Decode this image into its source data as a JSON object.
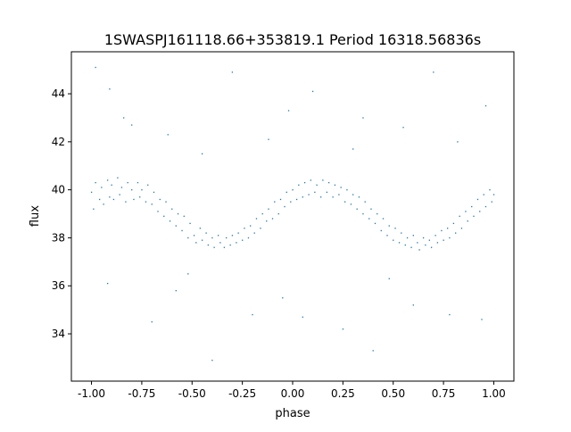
{
  "chart_data": {
    "type": "scatter",
    "title": "1SWASPJ161118.66+353819.1 Period 16318.56836s",
    "xlabel": "phase",
    "ylabel": "flux",
    "xlim": [
      -1.1,
      1.1
    ],
    "ylim": [
      32.03,
      45.75
    ],
    "xticks": [
      "-1.00",
      "-0.75",
      "-0.50",
      "-0.25",
      "0.00",
      "0.25",
      "0.50",
      "0.75",
      "1.00"
    ],
    "yticks": [
      "34",
      "36",
      "38",
      "40",
      "42",
      "44"
    ],
    "grid": false,
    "color": "#1f77b4",
    "points": [
      [
        -1.0,
        39.9
      ],
      [
        -0.99,
        39.2
      ],
      [
        -0.98,
        40.3
      ],
      [
        -0.96,
        39.6
      ],
      [
        -0.95,
        40.1
      ],
      [
        -0.94,
        39.4
      ],
      [
        -0.92,
        40.4
      ],
      [
        -0.91,
        39.7
      ],
      [
        -0.9,
        40.2
      ],
      [
        -0.89,
        39.6
      ],
      [
        -0.87,
        40.5
      ],
      [
        -0.86,
        39.8
      ],
      [
        -0.85,
        40.1
      ],
      [
        -0.83,
        39.5
      ],
      [
        -0.82,
        40.3
      ],
      [
        -0.8,
        40.0
      ],
      [
        -0.79,
        39.6
      ],
      [
        -0.77,
        40.3
      ],
      [
        -0.76,
        39.7
      ],
      [
        -0.75,
        40.0
      ],
      [
        -0.73,
        39.5
      ],
      [
        -0.72,
        40.2
      ],
      [
        -0.7,
        39.4
      ],
      [
        -0.69,
        39.9
      ],
      [
        -0.67,
        39.1
      ],
      [
        -0.66,
        39.6
      ],
      [
        -0.64,
        38.9
      ],
      [
        -0.63,
        39.5
      ],
      [
        -0.61,
        38.7
      ],
      [
        -0.6,
        39.2
      ],
      [
        -0.58,
        38.5
      ],
      [
        -0.57,
        39.0
      ],
      [
        -0.55,
        38.3
      ],
      [
        -0.54,
        38.9
      ],
      [
        -0.52,
        38.0
      ],
      [
        -0.51,
        38.6
      ],
      [
        -0.49,
        38.1
      ],
      [
        -0.48,
        37.8
      ],
      [
        -0.46,
        38.4
      ],
      [
        -0.45,
        37.9
      ],
      [
        -0.43,
        38.2
      ],
      [
        -0.42,
        37.7
      ],
      [
        -0.4,
        38.0
      ],
      [
        -0.39,
        37.6
      ],
      [
        -0.37,
        38.1
      ],
      [
        -0.36,
        37.8
      ],
      [
        -0.34,
        37.6
      ],
      [
        -0.33,
        38.0
      ],
      [
        -0.31,
        37.7
      ],
      [
        -0.3,
        38.1
      ],
      [
        -0.28,
        37.8
      ],
      [
        -0.27,
        38.2
      ],
      [
        -0.25,
        37.9
      ],
      [
        -0.24,
        38.4
      ],
      [
        -0.22,
        38.0
      ],
      [
        -0.21,
        38.5
      ],
      [
        -0.19,
        38.2
      ],
      [
        -0.18,
        38.8
      ],
      [
        -0.16,
        38.4
      ],
      [
        -0.15,
        39.0
      ],
      [
        -0.13,
        38.7
      ],
      [
        -0.12,
        39.2
      ],
      [
        -0.1,
        38.8
      ],
      [
        -0.09,
        39.5
      ],
      [
        -0.07,
        39.0
      ],
      [
        -0.06,
        39.6
      ],
      [
        -0.04,
        39.3
      ],
      [
        -0.03,
        39.9
      ],
      [
        -0.01,
        39.5
      ],
      [
        0.0,
        40.0
      ],
      [
        0.02,
        39.6
      ],
      [
        0.03,
        40.2
      ],
      [
        0.05,
        39.7
      ],
      [
        0.06,
        40.3
      ],
      [
        0.08,
        39.8
      ],
      [
        0.09,
        40.4
      ],
      [
        0.11,
        39.9
      ],
      [
        0.12,
        40.2
      ],
      [
        0.14,
        39.7
      ],
      [
        0.15,
        40.4
      ],
      [
        0.17,
        39.9
      ],
      [
        0.18,
        40.3
      ],
      [
        0.2,
        39.7
      ],
      [
        0.21,
        40.2
      ],
      [
        0.23,
        39.8
      ],
      [
        0.24,
        40.1
      ],
      [
        0.26,
        39.5
      ],
      [
        0.27,
        40.0
      ],
      [
        0.29,
        39.4
      ],
      [
        0.3,
        39.8
      ],
      [
        0.32,
        39.2
      ],
      [
        0.33,
        39.7
      ],
      [
        0.35,
        39.0
      ],
      [
        0.36,
        39.5
      ],
      [
        0.38,
        38.8
      ],
      [
        0.39,
        39.2
      ],
      [
        0.41,
        38.6
      ],
      [
        0.42,
        39.0
      ],
      [
        0.44,
        38.3
      ],
      [
        0.45,
        38.8
      ],
      [
        0.47,
        38.1
      ],
      [
        0.48,
        38.5
      ],
      [
        0.5,
        37.9
      ],
      [
        0.51,
        38.4
      ],
      [
        0.53,
        37.8
      ],
      [
        0.54,
        38.2
      ],
      [
        0.56,
        37.7
      ],
      [
        0.57,
        38.0
      ],
      [
        0.59,
        37.6
      ],
      [
        0.6,
        38.1
      ],
      [
        0.62,
        37.8
      ],
      [
        0.63,
        37.5
      ],
      [
        0.65,
        38.0
      ],
      [
        0.66,
        37.7
      ],
      [
        0.68,
        37.9
      ],
      [
        0.69,
        37.6
      ],
      [
        0.71,
        38.1
      ],
      [
        0.72,
        37.8
      ],
      [
        0.74,
        38.3
      ],
      [
        0.75,
        37.9
      ],
      [
        0.77,
        38.4
      ],
      [
        0.78,
        38.0
      ],
      [
        0.8,
        38.6
      ],
      [
        0.81,
        38.2
      ],
      [
        0.83,
        38.9
      ],
      [
        0.84,
        38.4
      ],
      [
        0.86,
        39.1
      ],
      [
        0.87,
        38.7
      ],
      [
        0.89,
        39.3
      ],
      [
        0.9,
        38.9
      ],
      [
        0.92,
        39.6
      ],
      [
        0.93,
        39.1
      ],
      [
        0.95,
        39.8
      ],
      [
        0.96,
        39.3
      ],
      [
        0.98,
        40.0
      ],
      [
        0.99,
        39.5
      ],
      [
        1.0,
        39.8
      ],
      [
        -0.98,
        45.1
      ],
      [
        -0.91,
        44.2
      ],
      [
        -0.84,
        43.0
      ],
      [
        -0.62,
        42.3
      ],
      [
        -0.45,
        41.5
      ],
      [
        -0.3,
        44.9
      ],
      [
        -0.12,
        42.1
      ],
      [
        -0.02,
        43.3
      ],
      [
        0.1,
        44.1
      ],
      [
        0.35,
        43.0
      ],
      [
        0.55,
        42.6
      ],
      [
        0.7,
        44.9
      ],
      [
        0.82,
        42.0
      ],
      [
        0.96,
        43.5
      ],
      [
        -0.92,
        36.1
      ],
      [
        -0.7,
        34.5
      ],
      [
        -0.52,
        36.5
      ],
      [
        -0.4,
        32.9
      ],
      [
        -0.2,
        34.8
      ],
      [
        -0.05,
        35.5
      ],
      [
        0.05,
        34.7
      ],
      [
        0.25,
        34.2
      ],
      [
        0.48,
        36.3
      ],
      [
        0.6,
        35.2
      ],
      [
        0.78,
        34.8
      ],
      [
        0.94,
        34.6
      ],
      [
        -0.58,
        35.8
      ],
      [
        0.4,
        33.3
      ],
      [
        -0.8,
        42.7
      ],
      [
        0.3,
        41.7
      ]
    ]
  }
}
